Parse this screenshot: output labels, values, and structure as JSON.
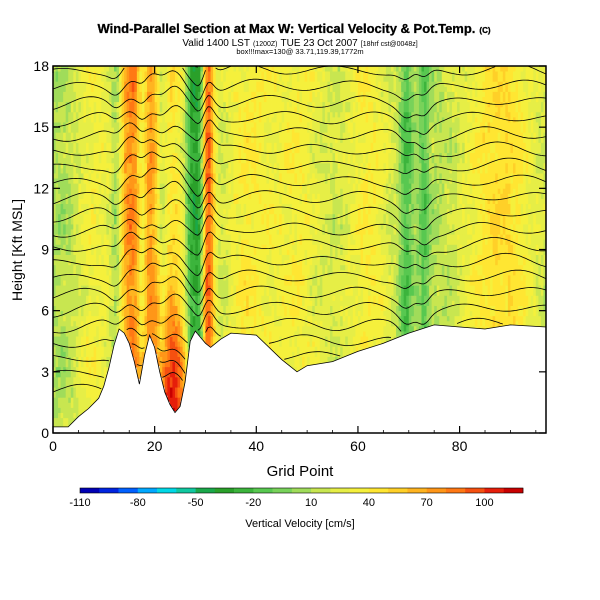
{
  "chart_data": {
    "type": "heatmap",
    "title": "Wind-Parallel Section at Max W: Vertical Velocity & Pot.Temp.",
    "title_mark": "(C)",
    "valid_prefix": "Valid 1400 LST",
    "valid_small1": "(1200Z)",
    "valid_main": "TUE 23 Oct 2007",
    "valid_small2": "[18hrf cst@0048z]",
    "subtitle2": "box!!!max=130@ 33.71,119.39,1772m",
    "xlabel": "Grid Point",
    "ylabel": "Height [Kft MSL]",
    "xlim": [
      0,
      97
    ],
    "ylim": [
      0,
      18
    ],
    "xticks": [
      "0",
      "20",
      "40",
      "60",
      "80"
    ],
    "yticks": [
      "0",
      "3",
      "6",
      "9",
      "12",
      "15",
      "18"
    ],
    "colorbar": {
      "label": "Vertical Velocity [cm/s]",
      "range": [
        -110,
        120
      ],
      "ticks": [
        "-110",
        "-80",
        "-50",
        "-20",
        "10",
        "40",
        "70",
        "100"
      ],
      "colors": [
        "#0000b4",
        "#0024e0",
        "#0060ff",
        "#00a8ff",
        "#00d8e6",
        "#10c8a0",
        "#1aa84a",
        "#2aa02a",
        "#3cb43c",
        "#58c850",
        "#78d25a",
        "#a0dc5a",
        "#c8e650",
        "#e6ee46",
        "#f5f03c",
        "#ffe632",
        "#ffd028",
        "#ffb420",
        "#ff9618",
        "#ff7814",
        "#f55010",
        "#e61e0a",
        "#c80000"
      ]
    },
    "terrain": [
      [
        0,
        0.3
      ],
      [
        3,
        0.3
      ],
      [
        5,
        0.8
      ],
      [
        7,
        1.2
      ],
      [
        9,
        1.7
      ],
      [
        10,
        2.3
      ],
      [
        11,
        3.2
      ],
      [
        12,
        4.3
      ],
      [
        13,
        5.1
      ],
      [
        14,
        4.9
      ],
      [
        15,
        4.4
      ],
      [
        16,
        3.5
      ],
      [
        17,
        2.4
      ],
      [
        18,
        3.8
      ],
      [
        19,
        4.8
      ],
      [
        20,
        4.2
      ],
      [
        21,
        3.0
      ],
      [
        22,
        2.0
      ],
      [
        23,
        1.4
      ],
      [
        24,
        1.0
      ],
      [
        25,
        1.3
      ],
      [
        26,
        2.5
      ],
      [
        27,
        4.5
      ],
      [
        28,
        5.0
      ],
      [
        29,
        4.7
      ],
      [
        30,
        4.4
      ],
      [
        31,
        4.2
      ],
      [
        33,
        4.6
      ],
      [
        35,
        4.9
      ],
      [
        40,
        4.8
      ],
      [
        45,
        3.6
      ],
      [
        48,
        3.0
      ],
      [
        50,
        3.3
      ],
      [
        55,
        3.5
      ],
      [
        60,
        4.0
      ],
      [
        65,
        4.4
      ],
      [
        70,
        4.9
      ],
      [
        75,
        5.3
      ],
      [
        80,
        5.2
      ],
      [
        85,
        5.1
      ],
      [
        90,
        5.3
      ],
      [
        97,
        5.2
      ]
    ],
    "updrafts": [
      {
        "x": 8,
        "w": 4,
        "v": 25
      },
      {
        "x": 15,
        "w": 3,
        "v": 60
      },
      {
        "x": 19,
        "w": 3,
        "v": 50
      },
      {
        "x": 23.5,
        "w": 3.5,
        "v": 95
      },
      {
        "x": 30.5,
        "w": 1.3,
        "v": 80
      },
      {
        "x": 38,
        "w": 5,
        "v": 30
      },
      {
        "x": 48,
        "w": 6,
        "v": 28
      },
      {
        "x": 62,
        "w": 5,
        "v": 30
      },
      {
        "x": 88,
        "w": 8,
        "v": 40
      }
    ],
    "downdrafts": [
      {
        "x": 12.5,
        "w": 1.2,
        "v": -35
      },
      {
        "x": 17.5,
        "w": 1.0,
        "v": -40
      },
      {
        "x": 21.5,
        "w": 1.2,
        "v": -35
      },
      {
        "x": 27.5,
        "w": 1.5,
        "v": -50
      },
      {
        "x": 29,
        "w": 0.8,
        "v": -30
      },
      {
        "x": 69.5,
        "w": 1.2,
        "v": -30
      },
      {
        "x": 73,
        "w": 1.0,
        "v": -25
      }
    ]
  }
}
